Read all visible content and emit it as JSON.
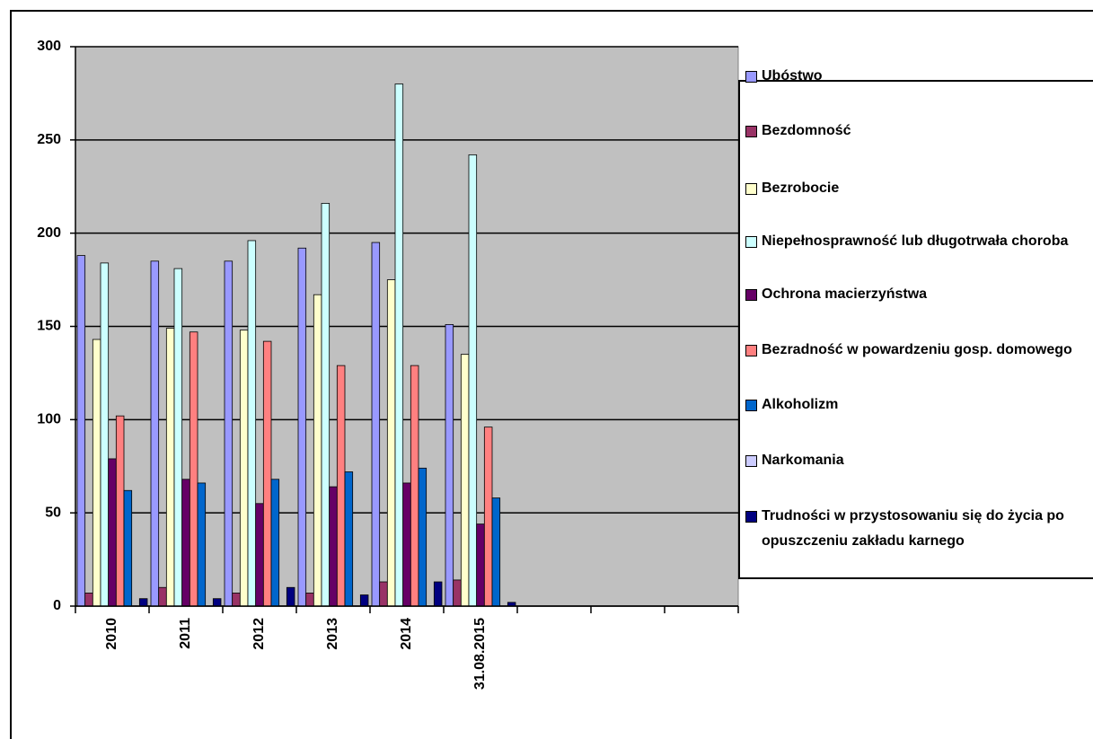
{
  "chart_data": {
    "type": "bar",
    "categories": [
      "2010",
      "2011",
      "2012",
      "2013",
      "2014",
      "31.08.2015",
      null,
      null,
      null
    ],
    "series": [
      {
        "name": "Ubóstwo",
        "color": "#9999ff",
        "values": [
          188,
          185,
          185,
          192,
          195,
          151,
          null,
          null,
          null
        ]
      },
      {
        "name": "Bezdomność",
        "color": "#993366",
        "values": [
          7,
          10,
          7,
          7,
          13,
          14,
          null,
          null,
          null
        ]
      },
      {
        "name": "Bezrobocie",
        "color": "#ffffcc",
        "values": [
          143,
          149,
          148,
          167,
          175,
          135,
          null,
          null,
          null
        ]
      },
      {
        "name": "Niepełnosprawność lub długotrwała choroba",
        "color": "#ccffff",
        "values": [
          184,
          181,
          196,
          216,
          280,
          242,
          null,
          null,
          null
        ]
      },
      {
        "name": "Ochrona macierzyństwa",
        "color": "#660066",
        "values": [
          79,
          68,
          55,
          64,
          66,
          44,
          null,
          null,
          null
        ]
      },
      {
        "name": "Bezradność w powardzeniu gosp. domowego",
        "color": "#ff8080",
        "values": [
          102,
          147,
          142,
          129,
          129,
          96,
          null,
          null,
          null
        ]
      },
      {
        "name": "Alkoholizm",
        "color": "#0066cc",
        "values": [
          62,
          66,
          68,
          72,
          74,
          58,
          null,
          null,
          null
        ]
      },
      {
        "name": "Narkomania",
        "color": "#ccccff",
        "values": [
          0,
          0,
          0,
          0,
          0,
          0,
          null,
          null,
          null
        ]
      },
      {
        "name": "Trudności w przystosowaniu się do życia po opuszczeniu zakładu karnego",
        "color": "#000080",
        "values": [
          4,
          4,
          10,
          6,
          13,
          2,
          null,
          null,
          null
        ]
      }
    ],
    "ylim": [
      0,
      300
    ],
    "yticks": [
      0,
      50,
      100,
      150,
      200,
      250,
      300
    ],
    "grid": true
  }
}
